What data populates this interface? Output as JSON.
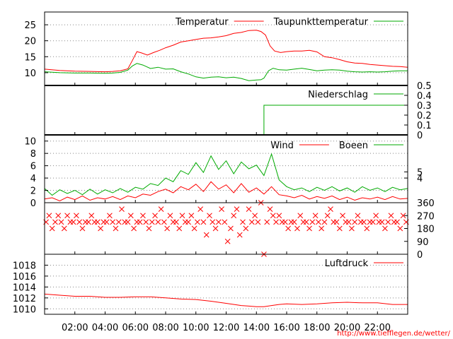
{
  "chart_data": {
    "type": "line",
    "x_label": "",
    "x_ticks": [
      "02:00",
      "04:00",
      "06:00",
      "08:00",
      "10:00",
      "12:00",
      "14:00",
      "16:00",
      "18:00",
      "20:00",
      "22:00"
    ],
    "x_range_hours": [
      0,
      24
    ],
    "credit": "http://www.tiefflegen.de/wetter/",
    "colors": {
      "red": "#ff0000",
      "green": "#00aa00",
      "frame": "#000000",
      "grid": "#888888"
    },
    "panels": [
      {
        "id": "temperature",
        "ylim": [
          6,
          29
        ],
        "y_ticks_left": [
          "10",
          "15",
          "20",
          "25"
        ],
        "y_ticks_right": [],
        "grid": true,
        "series": [
          {
            "name": "Temperatur",
            "color": "#ff0000",
            "x": [
              0,
              1,
              2,
              3,
              4,
              4.5,
              5,
              5.5,
              5.8,
              6.1,
              6.4,
              6.8,
              7.2,
              7.6,
              8,
              8.5,
              9,
              9.5,
              10,
              10.5,
              11,
              11.5,
              12,
              12.5,
              13,
              13.5,
              14,
              14.3,
              14.6,
              14.9,
              15.2,
              15.6,
              16,
              16.5,
              17,
              17.5,
              18,
              18.5,
              19,
              19.5,
              20,
              20.5,
              21,
              21.5,
              22,
              22.5,
              23,
              23.5,
              24
            ],
            "y": [
              11.1,
              10.7,
              10.5,
              10.4,
              10.3,
              10.4,
              10.6,
              11.2,
              13.8,
              16.6,
              16.2,
              15.5,
              16.3,
              17,
              17.8,
              18.6,
              19.6,
              20,
              20.4,
              20.8,
              20.9,
              21.2,
              21.6,
              22.3,
              22.6,
              23.2,
              23.3,
              22.9,
              21.8,
              18.4,
              16.8,
              16.3,
              16.6,
              16.8,
              16.8,
              17,
              16.5,
              15,
              14.7,
              14.1,
              13.4,
              13,
              12.9,
              12.6,
              12.4,
              12.2,
              12,
              11.9,
              11.7
            ]
          },
          {
            "name": "Taupunkttemperatur",
            "color": "#00aa00",
            "x": [
              0,
              1,
              2,
              3,
              4,
              4.5,
              5,
              5.5,
              5.8,
              6.1,
              6.5,
              7,
              7.5,
              8,
              8.5,
              9,
              9.5,
              10,
              10.5,
              11,
              11.5,
              12,
              12.5,
              13,
              13.5,
              14,
              14.3,
              14.5,
              14.8,
              15.1,
              15.5,
              16,
              16.5,
              17,
              17.5,
              18,
              18.5,
              19,
              19.5,
              20,
              20.5,
              21,
              21.5,
              22,
              22.5,
              23,
              23.5,
              24
            ],
            "y": [
              10.3,
              10,
              9.9,
              9.9,
              9.8,
              9.9,
              10.1,
              10.8,
              12.1,
              12.9,
              12.4,
              11.3,
              11.7,
              11.1,
              11.2,
              10.3,
              9.6,
              8.7,
              8.3,
              8.6,
              8.7,
              8.4,
              8.6,
              8.2,
              7.5,
              7.7,
              7.8,
              8.3,
              10.6,
              11.4,
              10.9,
              10.8,
              11.1,
              11.4,
              11,
              10.6,
              10.8,
              10.9,
              10.8,
              10.5,
              10.3,
              10.2,
              10.3,
              10.2,
              10.3,
              10.5,
              10.6,
              10.6
            ]
          }
        ]
      },
      {
        "id": "precipitation",
        "ylim": [
          0,
          0.5
        ],
        "y_ticks_left": [],
        "y_ticks_right": [
          "0",
          "0.1",
          "0.2",
          "0.3",
          "0.4",
          "0.5"
        ],
        "grid": false,
        "series": [
          {
            "name": "Niederschlag",
            "color": "#00aa00",
            "x": [
              0,
              14.5,
              14.5,
              24
            ],
            "y": [
              0,
              0,
              0.3,
              0.3
            ]
          }
        ]
      },
      {
        "id": "wind",
        "ylim": [
          0,
          11
        ],
        "y_ticks_left": [
          "0",
          "2",
          "4",
          "6",
          "8",
          "10"
        ],
        "y_ticks_right": [
          "4",
          "5"
        ],
        "grid": true,
        "series": [
          {
            "name": "Wind",
            "color": "#ff0000",
            "x": [
              0,
              0.5,
              1,
              1.5,
              2,
              2.5,
              3,
              3.5,
              4,
              4.5,
              5,
              5.5,
              6,
              6.5,
              7,
              7.5,
              8,
              8.5,
              9,
              9.5,
              10,
              10.5,
              11,
              11.5,
              12,
              12.5,
              13,
              13.5,
              14,
              14.5,
              15,
              15.5,
              16,
              16.5,
              17,
              17.5,
              18,
              18.5,
              19,
              19.5,
              20,
              20.5,
              21,
              21.5,
              22,
              22.5,
              23,
              23.5,
              24
            ],
            "y": [
              0.6,
              0.8,
              0.3,
              0.9,
              0.5,
              1.1,
              0.4,
              0.8,
              0.6,
              1,
              0.5,
              1.1,
              0.8,
              1.4,
              1.2,
              1.8,
              2.2,
              1.6,
              2.6,
              2.1,
              3,
              1.8,
              3.4,
              2.2,
              2.9,
              1.6,
              3.1,
              1.7,
              2.4,
              1.4,
              2.6,
              1.3,
              1.1,
              0.8,
              1.2,
              0.6,
              1,
              0.7,
              1.1,
              0.5,
              0.9,
              0.4,
              0.8,
              0.6,
              0.9,
              0.5,
              1,
              0.6,
              0.7
            ]
          },
          {
            "name": "Boeen",
            "color": "#00aa00",
            "x": [
              0,
              0.5,
              1,
              1.5,
              2,
              2.5,
              3,
              3.5,
              4,
              4.5,
              5,
              5.5,
              6,
              6.5,
              7,
              7.5,
              8,
              8.5,
              9,
              9.5,
              10,
              10.5,
              11,
              11.5,
              12,
              12.5,
              13,
              13.5,
              14,
              14.5,
              15,
              15.5,
              16,
              16.5,
              17,
              17.5,
              18,
              18.5,
              19,
              19.5,
              20,
              20.5,
              21,
              21.5,
              22,
              22.5,
              23,
              23.5,
              24
            ],
            "y": [
              2.3,
              1.2,
              2.1,
              1.5,
              2,
              1.3,
              2.2,
              1.4,
              2.1,
              1.6,
              2.3,
              1.7,
              2.5,
              2.2,
              3.1,
              2.8,
              4,
              3.4,
              5.2,
              4.6,
              6.5,
              4.9,
              7.6,
              5.4,
              6.8,
              4.7,
              6.6,
              5.5,
              6.1,
              4.4,
              7.9,
              3.7,
              2.6,
              2.1,
              2.4,
              1.8,
              2.5,
              2,
              2.6,
              1.9,
              2.4,
              1.7,
              2.6,
              2,
              2.4,
              1.8,
              2.5,
              2.1,
              2.3
            ]
          }
        ]
      },
      {
        "id": "direction",
        "ylim": [
          0,
          360
        ],
        "y_ticks_left": [],
        "y_ticks_right": [
          "0",
          "90",
          "180",
          "270",
          "360"
        ],
        "grid": false,
        "series": [
          {
            "name": "",
            "color": "#ff0000",
            "marker": "x",
            "x": [
              0.1,
              0.3,
              0.5,
              0.7,
              0.9,
              1.1,
              1.3,
              1.5,
              1.7,
              1.9,
              2.1,
              2.3,
              2.5,
              2.7,
              2.9,
              3.1,
              3.3,
              3.5,
              3.7,
              3.9,
              4.1,
              4.3,
              4.5,
              4.7,
              4.9,
              5.1,
              5.3,
              5.5,
              5.7,
              5.9,
              6.1,
              6.3,
              6.5,
              6.7,
              6.9,
              7.1,
              7.3,
              7.5,
              7.7,
              7.9,
              8.1,
              8.3,
              8.5,
              8.7,
              8.9,
              9.1,
              9.3,
              9.5,
              9.7,
              9.9,
              10.1,
              10.3,
              10.5,
              10.7,
              10.9,
              11.1,
              11.3,
              11.5,
              11.7,
              11.9,
              12.1,
              12.3,
              12.5,
              12.7,
              12.9,
              13.1,
              13.3,
              13.5,
              13.7,
              13.9,
              14.1,
              14.3,
              14.5,
              14.7,
              14.9,
              15.1,
              15.3,
              15.5,
              15.7,
              15.9,
              16.1,
              16.3,
              16.5,
              16.7,
              16.9,
              17.1,
              17.3,
              17.5,
              17.7,
              17.9,
              18.1,
              18.3,
              18.5,
              18.7,
              18.9,
              19.1,
              19.3,
              19.5,
              19.7,
              19.9,
              20.1,
              20.3,
              20.5,
              20.7,
              20.9,
              21.1,
              21.3,
              21.5,
              21.7,
              21.9,
              22.1,
              22.3,
              22.5,
              22.7,
              22.9,
              23.1,
              23.3,
              23.5,
              23.7,
              23.9
            ],
            "y": [
              225,
              270,
              180,
              225,
              270,
              225,
              180,
              270,
              225,
              225,
              270,
              225,
              180,
              225,
              225,
              270,
              225,
              225,
              180,
              225,
              225,
              270,
              225,
              180,
              225,
              315,
              225,
              225,
              270,
              180,
              225,
              225,
              270,
              225,
              180,
              225,
              270,
              225,
              315,
              225,
              180,
              270,
              225,
              225,
              180,
              270,
              225,
              225,
              270,
              180,
              225,
              315,
              225,
              135,
              270,
              225,
              180,
              225,
              315,
              225,
              90,
              180,
              270,
              315,
              135,
              225,
              180,
              315,
              225,
              270,
              225,
              360,
              0,
              225,
              315,
              270,
              225,
              270,
              225,
              225,
              180,
              225,
              225,
              180,
              270,
              225,
              225,
              180,
              225,
              270,
              225,
              180,
              225,
              270,
              315,
              225,
              225,
              180,
              270,
              225,
              225,
              180,
              225,
              270,
              225,
              225,
              180,
              225,
              225,
              270,
              225,
              225,
              180,
              225,
              270,
              225,
              225,
              180,
              270,
              225
            ]
          }
        ]
      },
      {
        "id": "pressure",
        "ylim": [
          1009,
          1020
        ],
        "y_ticks_left": [
          "1010",
          "1012",
          "1014",
          "1016",
          "1018"
        ],
        "y_ticks_right": [],
        "grid": true,
        "series": [
          {
            "name": "Luftdruck",
            "color": "#ff0000",
            "x": [
              0,
              1,
              2,
              3,
              4,
              5,
              6,
              7,
              8,
              9,
              10,
              11,
              12,
              13,
              13.5,
              14,
              14.5,
              15,
              15.5,
              16,
              17,
              18,
              19,
              20,
              21,
              22,
              23,
              24
            ],
            "y": [
              1012.7,
              1012.5,
              1012.3,
              1012.3,
              1012.1,
              1012.1,
              1012.2,
              1012.2,
              1012,
              1011.8,
              1011.7,
              1011.4,
              1011,
              1010.6,
              1010.5,
              1010.4,
              1010.4,
              1010.6,
              1010.8,
              1010.9,
              1010.8,
              1010.9,
              1011.1,
              1011.2,
              1011.1,
              1011.1,
              1010.8,
              1010.8
            ]
          }
        ]
      }
    ]
  }
}
